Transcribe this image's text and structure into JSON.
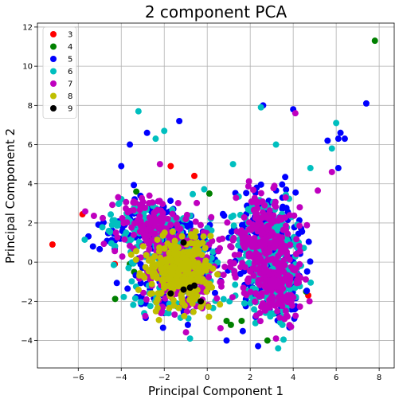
{
  "chart_data": {
    "type": "scatter",
    "title": "2 component PCA",
    "xlabel": "Principal Component 1",
    "ylabel": "Principal Component 2",
    "xlim": [
      -7.9,
      8.7
    ],
    "ylim": [
      -5.4,
      12.2
    ],
    "xticks": [
      -6,
      -4,
      -2,
      0,
      2,
      4,
      6,
      8
    ],
    "yticks": [
      -4,
      -2,
      0,
      2,
      4,
      6,
      8,
      10,
      12
    ],
    "grid": true,
    "legend_position": "upper-left",
    "clusters": [
      {
        "cx": -2.7,
        "cy": 1.9,
        "rx": 1.5,
        "ry": 0.9,
        "weight": 0.18
      },
      {
        "cx": -1.3,
        "cy": -0.4,
        "rx": 1.3,
        "ry": 1.4,
        "weight": 0.32
      },
      {
        "cx": 2.7,
        "cy": 1.2,
        "rx": 0.9,
        "ry": 1.5,
        "weight": 0.3
      },
      {
        "cx": 3.2,
        "cy": -1.3,
        "rx": 0.8,
        "ry": 1.1,
        "weight": 0.2
      }
    ],
    "series": [
      {
        "name": "3",
        "color": "#ff0000",
        "count": 14,
        "points": [
          [
            -7.2,
            0.9
          ],
          [
            -4.3,
            -0.1
          ],
          [
            -1.7,
            4.9
          ],
          [
            -0.6,
            4.4
          ],
          [
            4.7,
            -1.7
          ],
          [
            3.5,
            2.8
          ],
          [
            -0.9,
            -1.1
          ],
          [
            2.9,
            1.8
          ],
          [
            -2.1,
            1.2
          ],
          [
            3.7,
            1.3
          ]
        ]
      },
      {
        "name": "4",
        "color": "#008000",
        "count": 18,
        "points": [
          [
            7.8,
            11.3
          ],
          [
            -3.4,
            -0.5
          ],
          [
            -3.6,
            -0.1
          ],
          [
            -3.3,
            3.6
          ],
          [
            0.1,
            3.5
          ],
          [
            1.1,
            -3.2
          ],
          [
            1.6,
            -3.0
          ],
          [
            4.6,
            -1.5
          ],
          [
            2.8,
            -4.0
          ],
          [
            -2.6,
            2.8
          ],
          [
            0.9,
            -3.0
          ]
        ]
      },
      {
        "name": "5",
        "color": "#0000ff",
        "count": 700,
        "points": [
          [
            -1.3,
            7.2
          ],
          [
            2.6,
            8.0
          ],
          [
            4.0,
            7.8
          ],
          [
            7.4,
            8.1
          ],
          [
            6.2,
            6.6
          ],
          [
            6.1,
            6.3
          ],
          [
            -2.8,
            6.6
          ],
          [
            -3.6,
            6.0
          ],
          [
            -4.0,
            4.9
          ],
          [
            0.9,
            -4.0
          ],
          [
            -0.9,
            -3.2
          ],
          [
            -4.3,
            1.1
          ],
          [
            5.6,
            6.2
          ],
          [
            6.4,
            6.3
          ],
          [
            6.1,
            4.8
          ],
          [
            2.3,
            3.8
          ]
        ]
      },
      {
        "name": "6",
        "color": "#00bfbf",
        "count": 650,
        "points": [
          [
            -3.2,
            7.7
          ],
          [
            -2.0,
            6.7
          ],
          [
            -2.4,
            6.3
          ],
          [
            2.5,
            7.9
          ],
          [
            3.2,
            6.0
          ],
          [
            6.0,
            7.1
          ],
          [
            5.8,
            5.8
          ],
          [
            4.8,
            4.8
          ],
          [
            -4.1,
            3.0
          ],
          [
            -0.8,
            -3.9
          ],
          [
            3.3,
            -4.4
          ],
          [
            3.5,
            -3.2
          ],
          [
            1.2,
            5.0
          ]
        ]
      },
      {
        "name": "7",
        "color": "#bf00bf",
        "count": 700,
        "points": [
          [
            -2.2,
            5.0
          ],
          [
            4.1,
            7.6
          ],
          [
            5.8,
            4.6
          ],
          [
            -2.2,
            2.2
          ],
          [
            3.2,
            -3.9
          ],
          [
            3.9,
            -3.3
          ],
          [
            -1.0,
            2.2
          ]
        ]
      },
      {
        "name": "8",
        "color": "#bfbf00",
        "count": 350,
        "points": [
          [
            -1.5,
            -1.0
          ],
          [
            -1.0,
            -0.5
          ],
          [
            -0.7,
            -1.5
          ],
          [
            -1.8,
            0.2
          ],
          [
            -0.3,
            -2.3
          ]
        ]
      },
      {
        "name": "9",
        "color": "#000000",
        "count": 6,
        "points": [
          [
            -1.1,
            1.0
          ],
          [
            -1.7,
            -1.6
          ],
          [
            -1.1,
            -1.4
          ],
          [
            -0.6,
            -1.2
          ],
          [
            -0.8,
            -1.3
          ],
          [
            -0.3,
            -2.0
          ]
        ]
      }
    ]
  }
}
